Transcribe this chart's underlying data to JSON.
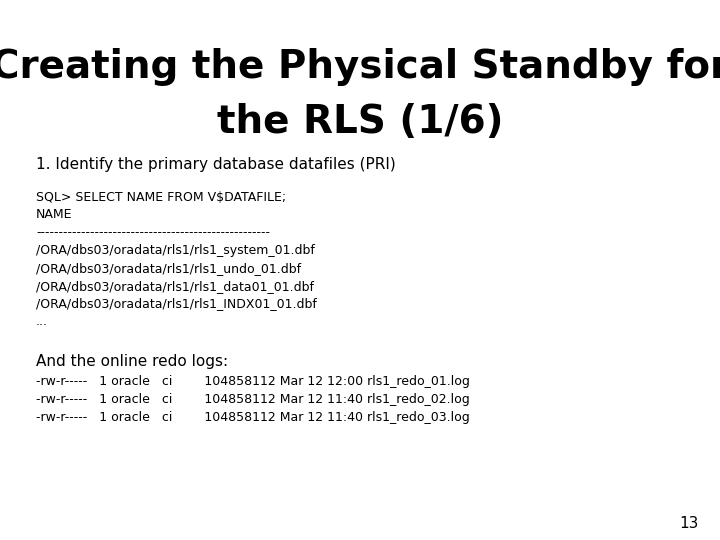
{
  "title_line1": "Creating the Physical Standby for",
  "title_line2": "the RLS (1/6)",
  "subtitle": "1. Identify the primary database datafiles (PRI)",
  "code_block": [
    "SQL> SELECT NAME FROM V$DATAFILE;",
    "NAME",
    "----------------------------------------------------",
    "/ORA/dbs03/oradata/rls1/rls1_system_01.dbf",
    "/ORA/dbs03/oradata/rls1/rls1_undo_01.dbf",
    "/ORA/dbs03/oradata/rls1/rls1_data01_01.dbf",
    "/ORA/dbs03/oradata/rls1/rls1_INDX01_01.dbf",
    "..."
  ],
  "prose_text": "And the online redo logs:",
  "redo_lines": [
    "-rw-r-----   1 oracle   ci        104858112 Mar 12 12:00 rls1_redo_01.log",
    "-rw-r-----   1 oracle   ci        104858112 Mar 12 11:40 rls1_redo_02.log",
    "-rw-r-----   1 oracle   ci        104858112 Mar 12 11:40 rls1_redo_03.log"
  ],
  "page_number": "13",
  "bg_color": "#ffffff",
  "title_color": "#000000",
  "subtitle_color": "#000000",
  "code_color": "#000000",
  "prose_color": "#000000",
  "page_num_color": "#000000",
  "title_fontsize": 28,
  "subtitle_fontsize": 11,
  "code_fontsize": 9,
  "prose_fontsize": 11,
  "page_num_fontsize": 11
}
